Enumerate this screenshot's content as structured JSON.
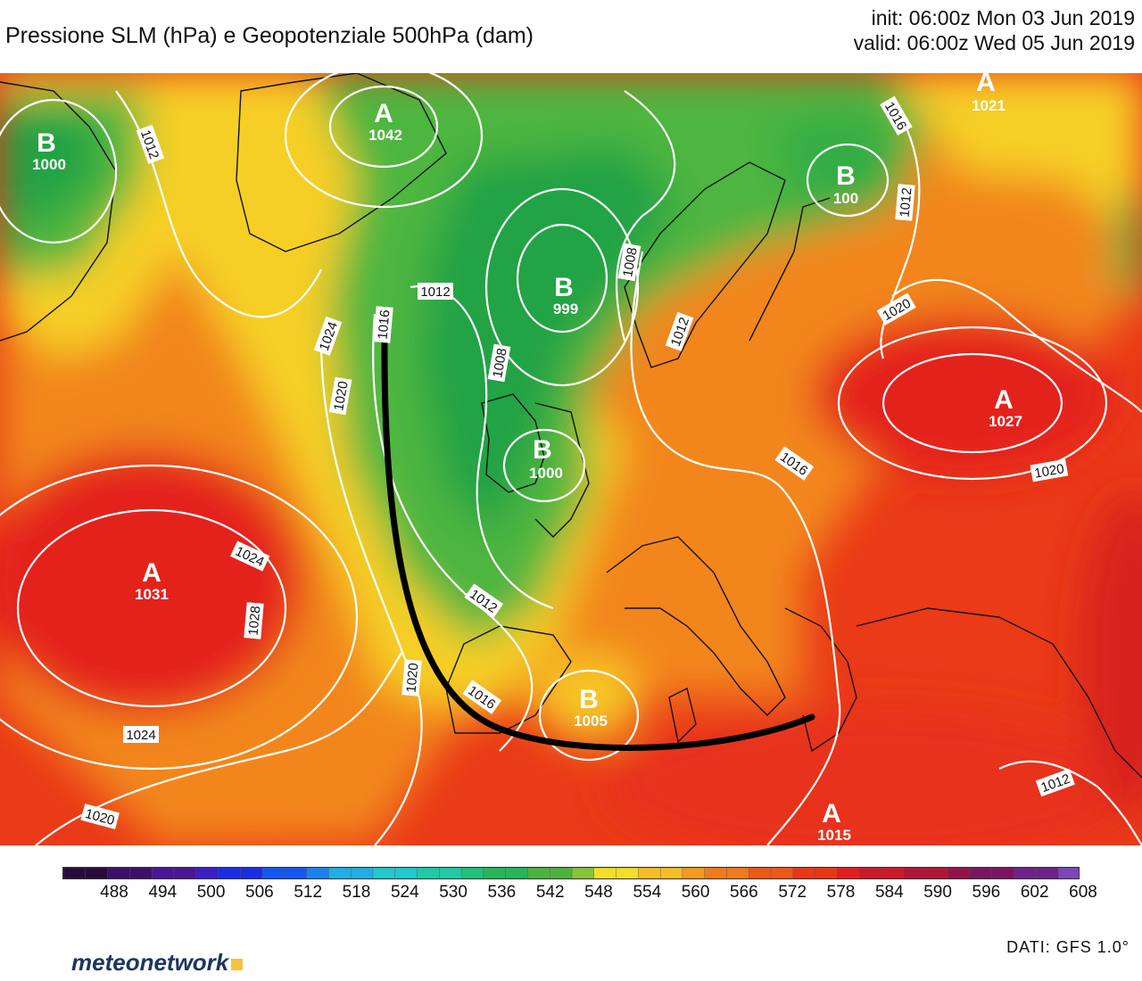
{
  "header": {
    "title": "Pressione SLM (hPa) e Geopotenziale 500hPa (dam)",
    "init": "init: 06:00z Mon 03 Jun 2019",
    "valid": "valid: 06:00z Wed 05 Jun 2019"
  },
  "pressure_centers": [
    {
      "letter": "B",
      "value": "1000"
    },
    {
      "letter": "A",
      "value": "1042"
    },
    {
      "letter": "B",
      "value": "999"
    },
    {
      "letter": "B",
      "value": "1000"
    },
    {
      "letter": "B",
      "value": "100"
    },
    {
      "letter": "A",
      "value": "1021"
    },
    {
      "letter": "A",
      "value": "1027"
    },
    {
      "letter": "A",
      "value": "1031"
    },
    {
      "letter": "B",
      "value": "1005"
    },
    {
      "letter": "A",
      "value": "1015"
    }
  ],
  "isobar_labels": [
    "1012",
    "1016",
    "1024",
    "1020",
    "1012",
    "1008",
    "1008",
    "1012",
    "1016",
    "1020",
    "1012",
    "1024",
    "1028",
    "1020",
    "1024",
    "1020",
    "1012",
    "1016",
    "1020",
    "1012",
    "1016"
  ],
  "colors": {
    "green_dark": "#1aa543",
    "green": "#4cb641",
    "yellow": "#f6d227",
    "orange": "#f39a1f",
    "red_orange": "#ef5a17",
    "red": "#e62a1b",
    "front_line": "#000000"
  },
  "scale": {
    "labels": [
      "488",
      "494",
      "500",
      "506",
      "512",
      "518",
      "524",
      "530",
      "536",
      "542",
      "548",
      "554",
      "560",
      "566",
      "572",
      "578",
      "584",
      "590",
      "596",
      "602",
      "608"
    ]
  },
  "footer": {
    "logo": "meteonetwork",
    "source": "DATI:  GFS  1.0°"
  }
}
